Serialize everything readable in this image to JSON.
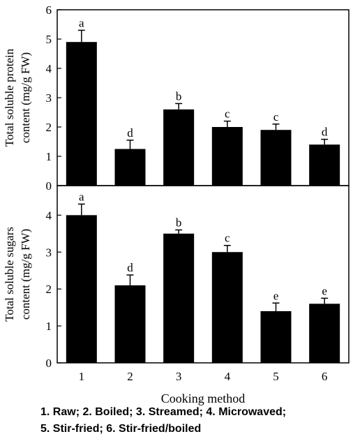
{
  "chart_data": [
    {
      "type": "bar",
      "categories": [
        "1",
        "2",
        "3",
        "4",
        "5",
        "6"
      ],
      "values": [
        4.9,
        1.25,
        2.6,
        2.0,
        1.9,
        1.4
      ],
      "errors": [
        0.4,
        0.3,
        0.2,
        0.2,
        0.2,
        0.18
      ],
      "significance_labels": [
        "a",
        "d",
        "b",
        "c",
        "c",
        "d"
      ],
      "ylabel_lines": [
        "Total soluble protein",
        "content (mg/g FW)"
      ],
      "ylim": [
        0,
        6
      ],
      "yticks": [
        "0",
        "1",
        "2",
        "3",
        "4",
        "5",
        "6"
      ],
      "xlabel": "",
      "grid": false,
      "bar_color": "#000000"
    },
    {
      "type": "bar",
      "categories": [
        "1",
        "2",
        "3",
        "4",
        "5",
        "6"
      ],
      "values": [
        4.0,
        2.1,
        3.5,
        3.0,
        1.4,
        1.6
      ],
      "errors": [
        0.3,
        0.28,
        0.1,
        0.18,
        0.22,
        0.15
      ],
      "significance_labels": [
        "a",
        "d",
        "b",
        "c",
        "e",
        "e"
      ],
      "ylabel_lines": [
        "Total soluble sugars",
        "content (mg/g FW)"
      ],
      "ylim": [
        0,
        4.8
      ],
      "yticks": [
        "0",
        "1",
        "2",
        "3",
        "4"
      ],
      "xlabel": "Cooking method",
      "grid": false,
      "bar_color": "#000000"
    }
  ],
  "caption": {
    "line1": "1. Raw; 2. Boiled; 3. Streamed; 4. Microwaved;",
    "line2": "5. Stir-fried; 6. Stir-fried/boiled"
  }
}
